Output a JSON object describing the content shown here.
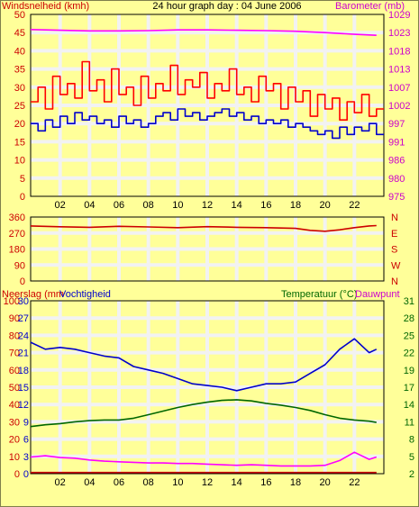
{
  "colors": {
    "background": "#ffff99",
    "grid": "#f2f2f2",
    "frame": "#000000",
    "title_red": "#cc0000",
    "title_magenta": "#cc00cc",
    "title_blue": "#0000cc",
    "title_green": "#006600",
    "wind_gust": "#ff0000",
    "wind_avg": "#0000cc",
    "barometer": "#ff00ff",
    "direction": "#cc0000",
    "humidity": "#0000cc",
    "temperature": "#006600",
    "dewpoint": "#ff00ff",
    "rain": "#cc0000"
  },
  "chart_data": [
    {
      "id": "wind_barometer",
      "type": "line",
      "title": "24 hour graph day : 04 June 2006",
      "left_axis_label": "Windsnelheid (kmh)",
      "right_axis_label": "Barometer (mb)",
      "x_range": [
        0,
        24
      ],
      "x_ticks": [
        "02",
        "04",
        "06",
        "08",
        "10",
        "12",
        "14",
        "16",
        "18",
        "20",
        "22"
      ],
      "left_ylim": [
        0,
        50
      ],
      "left_ticks": [
        "0",
        "5",
        "10",
        "15",
        "20",
        "25",
        "30",
        "35",
        "40",
        "45",
        "50"
      ],
      "right_ylim": [
        975,
        1029
      ],
      "right_ticks": [
        "975",
        "980",
        "986",
        "991",
        "997",
        "1002",
        "1007",
        "1013",
        "1018",
        "1023",
        "1029"
      ],
      "grid": true,
      "series": [
        {
          "key": "gust",
          "axis": "left",
          "step": true,
          "color": "wind_gust",
          "x": [
            0.0,
            0.5,
            1.0,
            1.5,
            2.0,
            2.5,
            3.0,
            3.5,
            4.0,
            4.5,
            5.0,
            5.5,
            6.0,
            6.5,
            7.0,
            7.5,
            8.0,
            8.5,
            9.0,
            9.5,
            10.0,
            10.5,
            11.0,
            11.5,
            12.0,
            12.5,
            13.0,
            13.5,
            14.0,
            14.5,
            15.0,
            15.5,
            16.0,
            16.5,
            17.0,
            17.5,
            18.0,
            18.5,
            19.0,
            19.5,
            20.0,
            20.5,
            21.0,
            21.5,
            22.0,
            22.5,
            23.0,
            23.5
          ],
          "y": [
            26,
            30,
            24,
            33,
            28,
            31,
            27,
            37,
            29,
            32,
            26,
            35,
            28,
            30,
            25,
            33,
            27,
            31,
            29,
            36,
            28,
            32,
            30,
            34,
            27,
            31,
            29,
            35,
            28,
            30,
            26,
            33,
            29,
            31,
            24,
            30,
            26,
            29,
            22,
            28,
            24,
            27,
            21,
            26,
            23,
            28,
            22,
            24
          ]
        },
        {
          "key": "average",
          "axis": "left",
          "step": true,
          "color": "wind_avg",
          "x": [
            0.0,
            0.5,
            1.0,
            1.5,
            2.0,
            2.5,
            3.0,
            3.5,
            4.0,
            4.5,
            5.0,
            5.5,
            6.0,
            6.5,
            7.0,
            7.5,
            8.0,
            8.5,
            9.0,
            9.5,
            10.0,
            10.5,
            11.0,
            11.5,
            12.0,
            12.5,
            13.0,
            13.5,
            14.0,
            14.5,
            15.0,
            15.5,
            16.0,
            16.5,
            17.0,
            17.5,
            18.0,
            18.5,
            19.0,
            19.5,
            20.0,
            20.5,
            21.0,
            21.5,
            22.0,
            22.5,
            23.0,
            23.5
          ],
          "y": [
            20,
            18,
            21,
            19,
            22,
            20,
            23,
            21,
            22,
            20,
            21,
            19,
            22,
            20,
            21,
            19,
            20,
            22,
            23,
            21,
            24,
            22,
            23,
            21,
            22,
            23,
            24,
            22,
            23,
            21,
            22,
            20,
            21,
            20,
            21,
            19,
            20,
            19,
            18,
            17,
            18,
            16,
            19,
            17,
            19,
            18,
            20,
            17
          ]
        },
        {
          "key": "barometer",
          "axis": "right",
          "step": false,
          "color": "barometer",
          "x": [
            0,
            2,
            4,
            6,
            8,
            10,
            12,
            14,
            16,
            18,
            20,
            22,
            23.5
          ],
          "y": [
            1024.5,
            1024.3,
            1024.1,
            1024.1,
            1024.2,
            1024.4,
            1024.4,
            1024.3,
            1024.2,
            1024.0,
            1023.6,
            1023.1,
            1022.8
          ]
        }
      ]
    },
    {
      "id": "wind_direction",
      "type": "line",
      "x_range": [
        0,
        24
      ],
      "x_ticks": [
        "02",
        "04",
        "06",
        "08",
        "10",
        "12",
        "14",
        "16",
        "18",
        "20",
        "22"
      ],
      "left_ylim": [
        0,
        360
      ],
      "left_ticks": [
        "0",
        "90",
        "180",
        "270",
        "360"
      ],
      "right_labels": [
        "N",
        "E",
        "S",
        "W",
        "N"
      ],
      "grid": true,
      "series": [
        {
          "key": "direction",
          "axis": "left",
          "step": false,
          "color": "direction",
          "x": [
            0,
            2,
            4,
            6,
            8,
            10,
            12,
            14,
            16,
            18,
            19,
            20,
            21,
            22,
            23,
            23.5
          ],
          "y": [
            310,
            305,
            302,
            308,
            304,
            300,
            306,
            302,
            300,
            296,
            285,
            280,
            288,
            300,
            310,
            312
          ]
        }
      ]
    },
    {
      "id": "temperature_humidity",
      "type": "line",
      "left_axis_label": "Neerslag (mm",
      "left_axis_label_2": "Vochtigheid",
      "right_axis_label": "Temperatuur (°C)",
      "right_axis_label_2": "Dauwpunt",
      "x_range": [
        0,
        24
      ],
      "x_ticks": [
        "02",
        "04",
        "06",
        "08",
        "10",
        "12",
        "14",
        "16",
        "18",
        "20",
        "22"
      ],
      "humidity_ylim": [
        0,
        100
      ],
      "humidity_ticks": [
        "0",
        "10",
        "20",
        "30",
        "40",
        "50",
        "60",
        "70",
        "80",
        "90",
        "100"
      ],
      "rain_ylim": [
        0,
        30
      ],
      "rain_ticks": [
        "0",
        "3",
        "6",
        "9",
        "12",
        "15",
        "18",
        "21",
        "24",
        "27",
        "30"
      ],
      "temp_ylim": [
        2,
        31
      ],
      "temp_ticks": [
        "2",
        "5",
        "8",
        "11",
        "14",
        "17",
        "19",
        "22",
        "25",
        "28",
        "31"
      ],
      "grid": true,
      "series": [
        {
          "key": "humidity",
          "axis": "humidity",
          "color": "humidity",
          "x": [
            0,
            1,
            2,
            3,
            4,
            5,
            6,
            7,
            8,
            9,
            10,
            11,
            12,
            13,
            14,
            15,
            16,
            17,
            18,
            19,
            20,
            21,
            22,
            22.5,
            23,
            23.5
          ],
          "y": [
            76,
            72,
            73,
            72,
            70,
            68,
            67,
            62,
            60,
            58,
            55,
            52,
            51,
            50,
            48,
            50,
            52,
            52,
            53,
            58,
            63,
            72,
            78,
            74,
            70,
            72
          ]
        },
        {
          "key": "temperature",
          "axis": "temp",
          "color": "temperature",
          "x": [
            0,
            1,
            2,
            3,
            4,
            5,
            6,
            7,
            8,
            9,
            10,
            11,
            12,
            13,
            14,
            15,
            16,
            17,
            18,
            19,
            20,
            21,
            22,
            23,
            23.5
          ],
          "y": [
            9.9,
            10.2,
            10.4,
            10.7,
            10.9,
            11.0,
            11.0,
            11.3,
            11.9,
            12.5,
            13.1,
            13.6,
            14.0,
            14.3,
            14.4,
            14.2,
            13.8,
            13.5,
            13.1,
            12.6,
            11.9,
            11.3,
            11.0,
            10.8,
            10.6
          ]
        },
        {
          "key": "dewpoint",
          "axis": "temp",
          "color": "dewpoint",
          "x": [
            0,
            1,
            2,
            3,
            4,
            5,
            6,
            7,
            8,
            9,
            10,
            11,
            12,
            13,
            14,
            15,
            16,
            17,
            18,
            19,
            20,
            21,
            22,
            23,
            23.5
          ],
          "y": [
            4.8,
            5.0,
            4.7,
            4.6,
            4.3,
            4.1,
            4.0,
            3.9,
            3.8,
            3.8,
            3.7,
            3.7,
            3.6,
            3.5,
            3.4,
            3.5,
            3.4,
            3.3,
            3.3,
            3.3,
            3.4,
            4.2,
            5.6,
            4.4,
            4.8
          ]
        },
        {
          "key": "rain",
          "axis": "rain",
          "color": "rain",
          "x": [
            0,
            23.5
          ],
          "y": [
            0.2,
            0.2
          ]
        }
      ]
    }
  ]
}
